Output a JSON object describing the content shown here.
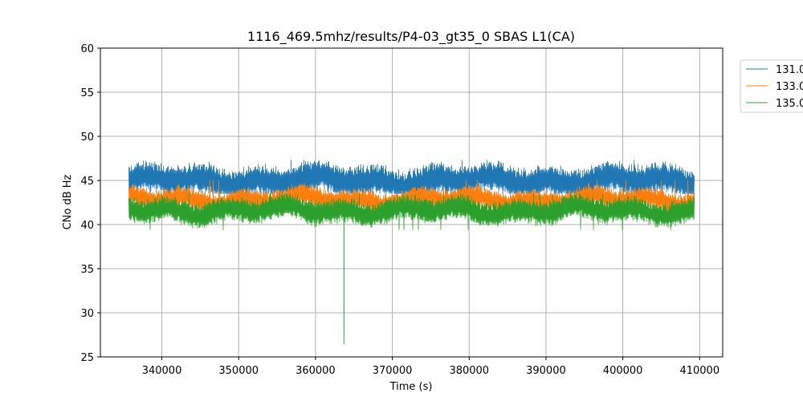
{
  "chart_data": {
    "type": "line",
    "title": "1116_469.5mhz/results/P4-03_gt35_0 SBAS L1(CA)",
    "xlabel": "Time (s)",
    "ylabel": "CNo dB Hz",
    "xlim": [
      332000,
      413000
    ],
    "ylim": [
      25,
      60
    ],
    "x_ticks": [
      340000,
      350000,
      360000,
      370000,
      380000,
      390000,
      400000,
      410000
    ],
    "x_tick_labels": [
      "340000",
      "350000",
      "360000",
      "370000",
      "380000",
      "390000",
      "400000",
      "410000"
    ],
    "y_ticks": [
      25,
      30,
      35,
      40,
      45,
      50,
      55,
      60
    ],
    "y_tick_labels": [
      "25",
      "30",
      "35",
      "40",
      "45",
      "50",
      "55",
      "60"
    ],
    "grid": true,
    "legend_position": "outside-top-right",
    "x_range": [
      335700,
      409300
    ],
    "series": [
      {
        "name": "131.0",
        "color": "#1f77b4",
        "mean": 45.0,
        "band_low": 43.8,
        "band_high": 46.4,
        "envelope_low": 43.5,
        "envelope_high": 47.3
      },
      {
        "name": "133.0",
        "color": "#ff7f0e",
        "mean": 42.8,
        "band_low": 41.9,
        "band_high": 43.8,
        "envelope_low": 41.0,
        "envelope_high": 45.0
      },
      {
        "name": "135.0",
        "color": "#2ca02c",
        "mean": 41.6,
        "band_low": 40.5,
        "band_high": 42.6,
        "envelope_low": 39.4,
        "envelope_high": 43.5,
        "outlier": {
          "x": 363700,
          "y": 26.4
        }
      }
    ]
  }
}
